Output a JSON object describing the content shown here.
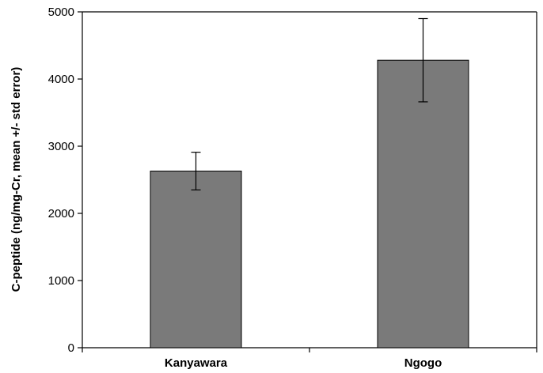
{
  "chart_data": {
    "type": "bar",
    "title": "",
    "xlabel": "",
    "ylabel": "C-peptide (ng/mg-Cr, mean +/- std error)",
    "categories": [
      "Kanyawara",
      "Ngogo"
    ],
    "values": [
      2630,
      4280
    ],
    "error": [
      280,
      620
    ],
    "ylim": [
      0,
      5000
    ],
    "yticks": [
      0,
      1000,
      2000,
      3000,
      4000,
      5000
    ],
    "ytick_labels": [
      "0",
      "1000",
      "2000",
      "3000",
      "4000",
      "5000"
    ],
    "grid": false,
    "legend": "none",
    "bar_color": "#7a7a7a",
    "bar_edge_color": "#000000"
  }
}
